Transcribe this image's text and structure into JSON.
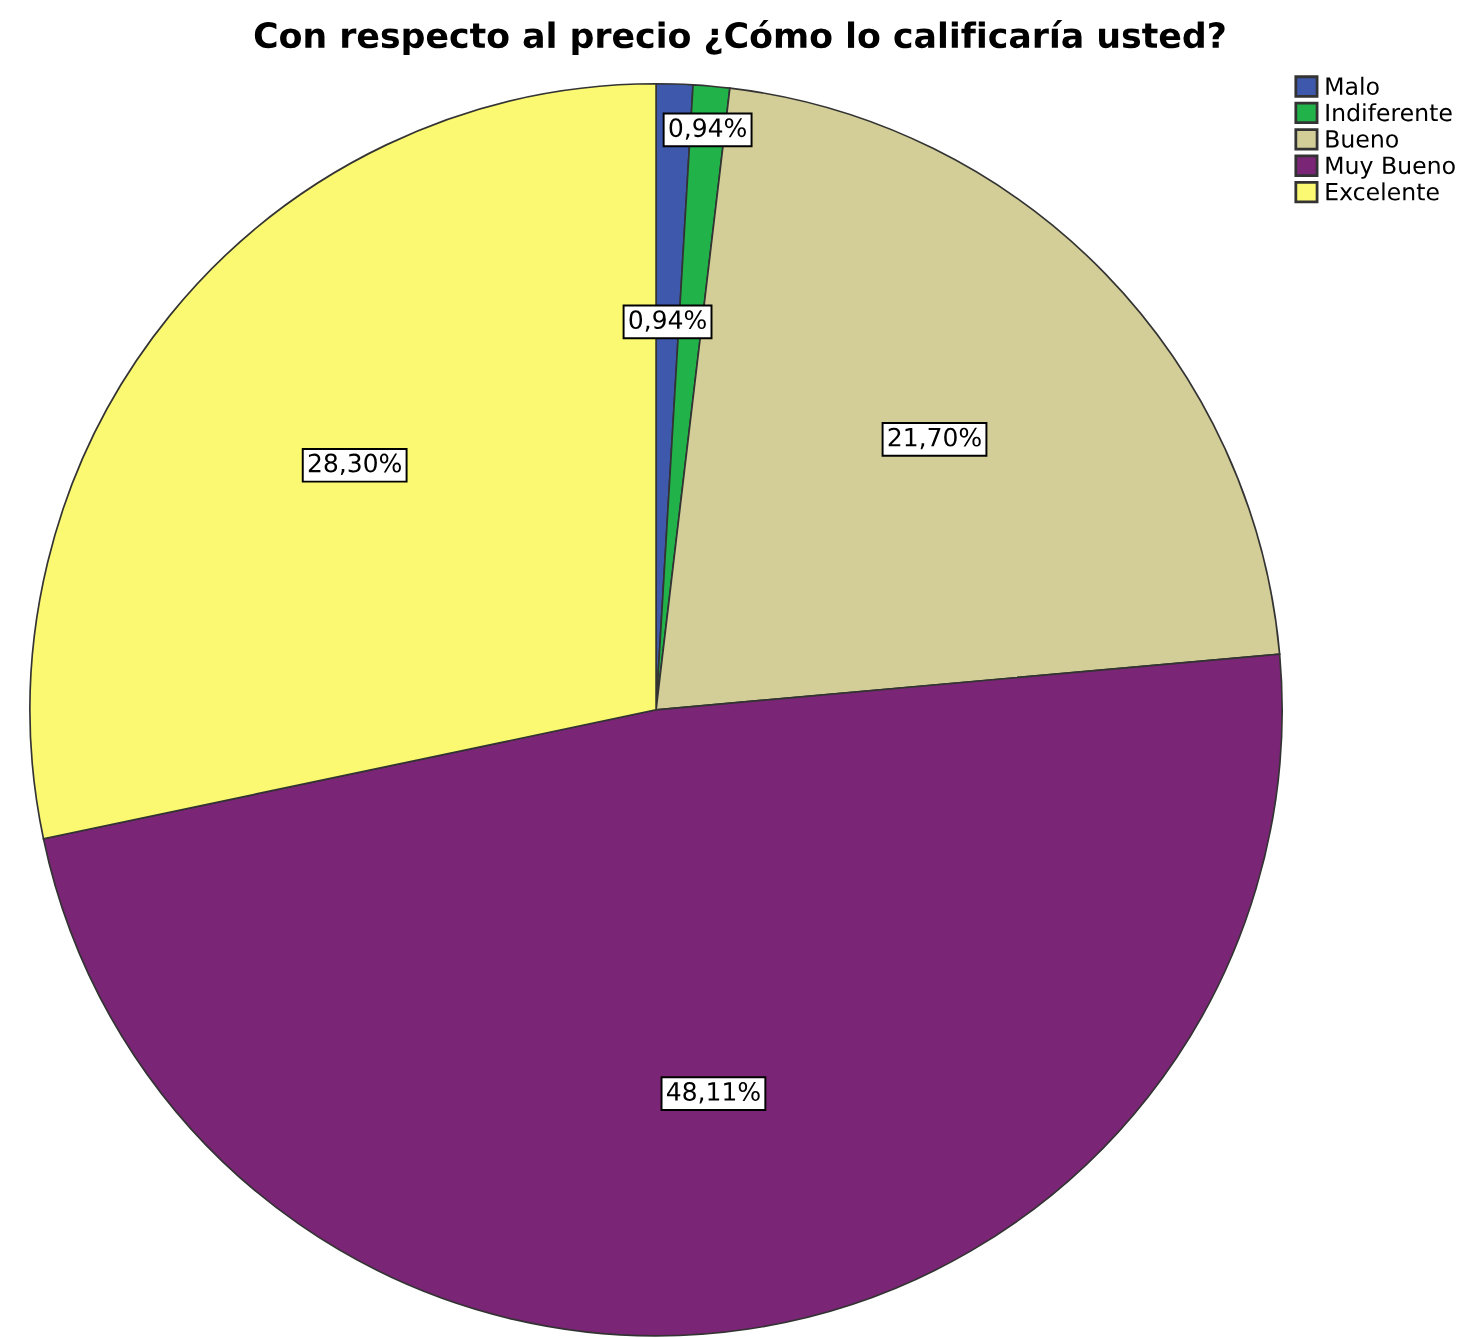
{
  "chart_data": {
    "type": "pie",
    "title": "Con respecto al precio ¿Cómo lo calificaría usted?",
    "categories": [
      "Malo",
      "Indiferente",
      "Bueno",
      "Muy Bueno",
      "Excelente"
    ],
    "values": [
      0.94,
      0.94,
      21.7,
      48.11,
      28.3
    ],
    "colors": [
      "#3e58ac",
      "#21b24a",
      "#d3ce97",
      "#7b2576",
      "#fbf872"
    ],
    "value_labels": [
      "0,94%",
      "0,94%",
      "21,70%",
      "48,11%",
      "28,30%"
    ],
    "legend": "top right"
  }
}
